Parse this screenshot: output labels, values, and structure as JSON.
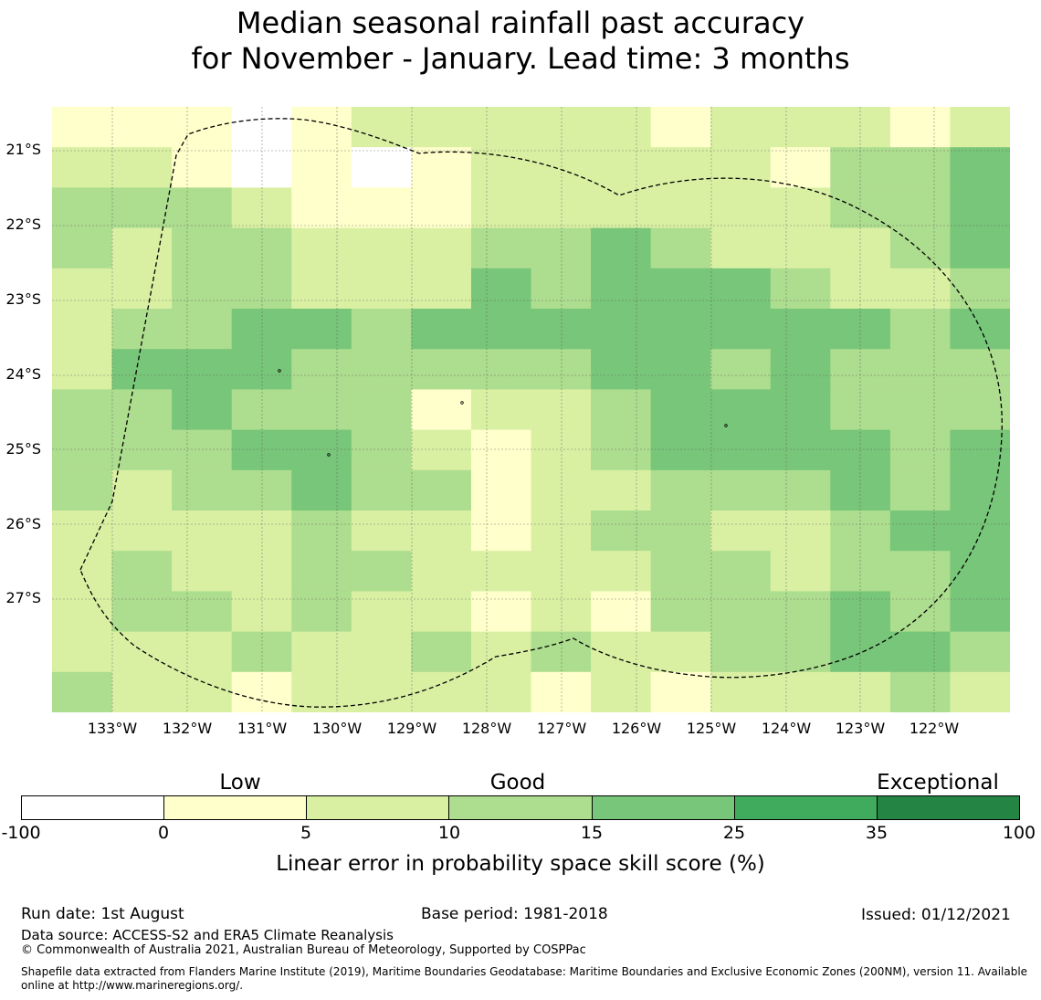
{
  "title_line1": "Median seasonal rainfall past accuracy",
  "title_line2": "for November - January. Lead time: 3 months",
  "map": {
    "lat_labels": [
      "21°S",
      "22°S",
      "23°S",
      "24°S",
      "25°S",
      "26°S",
      "27°S"
    ],
    "lon_labels": [
      "133°W",
      "132°W",
      "131°W",
      "130°W",
      "129°W",
      "128°W",
      "127°W",
      "126°W",
      "125°W",
      "124°W",
      "123°W",
      "122°W"
    ],
    "categories_grid_note": "",
    "grid_levels": [
      [
        1,
        1,
        1,
        0,
        1,
        2,
        2,
        2,
        2,
        2,
        1,
        2,
        2,
        2,
        1,
        2
      ],
      [
        2,
        2,
        1,
        0,
        1,
        0,
        1,
        2,
        2,
        2,
        2,
        2,
        1,
        3,
        3,
        4
      ],
      [
        3,
        3,
        3,
        2,
        1,
        1,
        1,
        2,
        2,
        2,
        2,
        2,
        2,
        3,
        3,
        4
      ],
      [
        3,
        2,
        3,
        3,
        2,
        2,
        2,
        3,
        3,
        4,
        3,
        2,
        2,
        2,
        3,
        4
      ],
      [
        2,
        2,
        3,
        3,
        2,
        2,
        2,
        4,
        3,
        4,
        4,
        4,
        3,
        2,
        2,
        3
      ],
      [
        2,
        3,
        3,
        4,
        4,
        3,
        4,
        4,
        4,
        4,
        4,
        4,
        4,
        4,
        3,
        4
      ],
      [
        2,
        4,
        4,
        4,
        3,
        3,
        3,
        3,
        3,
        4,
        4,
        3,
        4,
        3,
        3,
        3
      ],
      [
        3,
        3,
        4,
        3,
        3,
        3,
        1,
        2,
        2,
        3,
        4,
        4,
        4,
        3,
        3,
        3
      ],
      [
        3,
        3,
        3,
        4,
        4,
        3,
        2,
        1,
        2,
        3,
        4,
        4,
        4,
        4,
        3,
        4
      ],
      [
        3,
        2,
        3,
        3,
        4,
        3,
        3,
        1,
        2,
        2,
        3,
        3,
        3,
        4,
        3,
        4
      ],
      [
        2,
        2,
        2,
        2,
        3,
        2,
        2,
        1,
        2,
        3,
        3,
        2,
        2,
        3,
        4,
        4
      ],
      [
        2,
        3,
        2,
        2,
        3,
        3,
        2,
        2,
        2,
        2,
        3,
        3,
        2,
        3,
        3,
        4
      ],
      [
        2,
        3,
        3,
        2,
        3,
        2,
        2,
        1,
        2,
        1,
        3,
        3,
        3,
        4,
        3,
        4
      ],
      [
        2,
        2,
        2,
        3,
        2,
        2,
        3,
        2,
        3,
        2,
        2,
        3,
        3,
        4,
        4,
        3
      ],
      [
        3,
        2,
        2,
        1,
        2,
        2,
        2,
        2,
        1,
        2,
        1,
        2,
        2,
        2,
        3,
        2
      ]
    ],
    "eez_outline": "dashed"
  },
  "legend": {
    "category_labels": [
      "Low",
      "Good",
      "Exceptional"
    ],
    "colors": [
      "#ffffff",
      "#ffffcc",
      "#d9f0a3",
      "#addd8e",
      "#78c679",
      "#41ab5d",
      "#238443"
    ],
    "ticks": [
      "-100",
      "0",
      "5",
      "10",
      "15",
      "25",
      "35",
      "100"
    ],
    "label": "Linear error in probability space skill score (%)"
  },
  "footer": {
    "run_date": "Run date: 1st August",
    "base_period": "Base period: 1981-2018",
    "issued": "Issued: 01/12/2021",
    "data_source": "Data source: ACCESS-S2 and ERA5 Climate Reanalysis",
    "copyright": "© Commonwealth of Australia 2021, Australian Bureau of Meteorology, Supported by COSPPac",
    "shapefile": "Shapefile data extracted from Flanders Marine Institute (2019), Maritime Boundaries Geodatabase: Maritime Boundaries and Exclusive Economic Zones (200NM), version 11. Available online at http://www.marineregions.org/."
  }
}
